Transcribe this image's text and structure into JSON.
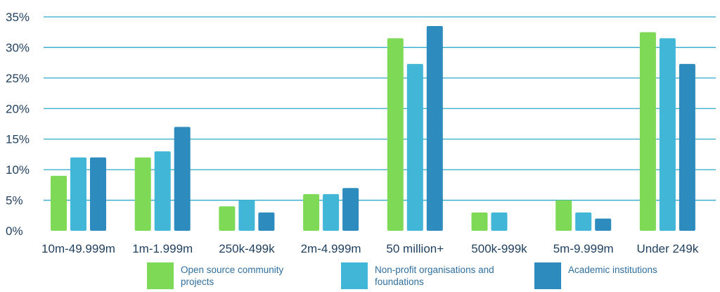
{
  "chart_data": {
    "type": "bar",
    "title": "",
    "xlabel": "",
    "ylabel": "",
    "ylim": [
      0,
      35
    ],
    "yticks": [
      0,
      5,
      10,
      15,
      20,
      25,
      30,
      35
    ],
    "ytick_labels": [
      "0%",
      "5%",
      "10%",
      "15%",
      "20%",
      "25%",
      "30%",
      "35%"
    ],
    "grid": "horizontal",
    "legend_position": "bottom",
    "categories": [
      "10m-49.999m",
      "1m-1.999m",
      "250k-499k",
      "2m-4.999m",
      "50 million+",
      "500k-999k",
      "5m-9.999m",
      "Under 249k"
    ],
    "series": [
      {
        "name": "Open source community projects",
        "color": "#7ed957",
        "values": [
          9,
          12,
          4,
          6,
          31.5,
          3,
          5,
          32.5
        ]
      },
      {
        "name": "Non-profit organisations and foundations",
        "color": "#41b6d6",
        "values": [
          12,
          13,
          5,
          6,
          27.3,
          3,
          3,
          31.5
        ]
      },
      {
        "name": "Academic institutions",
        "color": "#2d8bbd",
        "values": [
          12,
          17,
          3,
          7,
          33.5,
          0,
          2,
          27.3
        ]
      }
    ],
    "gridline_color": "#2fa8c9",
    "axis_text_color": "#1f3f5e"
  }
}
